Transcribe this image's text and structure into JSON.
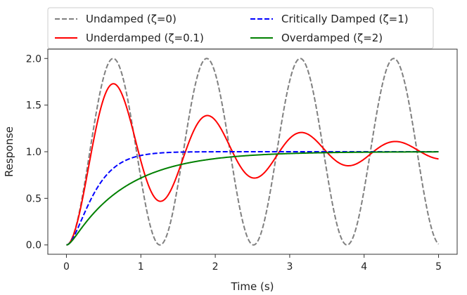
{
  "chart_data": {
    "type": "line",
    "title": "",
    "xlabel": "Time (s)",
    "ylabel": "Response",
    "xlim": [
      -0.25,
      5.25
    ],
    "ylim": [
      -0.1,
      2.1
    ],
    "xticks": [
      0,
      1,
      2,
      3,
      4,
      5
    ],
    "yticks": [
      0.0,
      0.5,
      1.0,
      1.5,
      2.0
    ],
    "xtick_labels": [
      "0",
      "1",
      "2",
      "3",
      "4",
      "5"
    ],
    "ytick_labels": [
      "0.0",
      "0.5",
      "1.0",
      "1.5",
      "2.0"
    ],
    "grid": false,
    "legend_position": "top",
    "natural_frequency_rad_s": 5,
    "x_range": [
      0,
      5
    ],
    "series": [
      {
        "name": "Undamped (ζ=0)",
        "zeta": 0,
        "color": "#808080",
        "style": "dashed"
      },
      {
        "name": "Underdamped (ζ=0.1)",
        "zeta": 0.1,
        "color": "#ff0000",
        "style": "solid"
      },
      {
        "name": "Critically Damped (ζ=1)",
        "zeta": 1,
        "color": "#0000ff",
        "style": "dashed"
      },
      {
        "name": "Overdamped (ζ=2)",
        "zeta": 2,
        "color": "#008000",
        "style": "solid"
      }
    ]
  }
}
